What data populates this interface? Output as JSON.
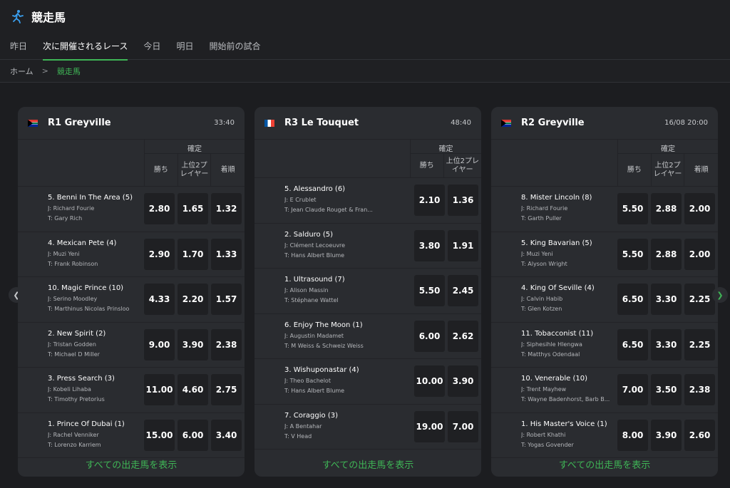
{
  "header": {
    "title": "競走馬",
    "icon": "horse-racing-icon"
  },
  "tabs": [
    "昨日",
    "次に開催されるレース",
    "今日",
    "明日",
    "開始前の試合"
  ],
  "active_tab": 1,
  "breadcrumb": {
    "home": "ホーム",
    "separator": ">",
    "current": "競走馬"
  },
  "colors": {
    "accent": "#3fb556",
    "background": "#1c1d20",
    "card": "#2a2c30",
    "odds_box": "#1f2023"
  },
  "cards": [
    {
      "flag": "south-africa-flag-icon",
      "name": "R1 Greyville",
      "time": "33:40",
      "confirm_label": "確定",
      "columns": [
        "勝ち",
        "上位2プレイヤー",
        "着順"
      ],
      "runners": [
        {
          "name": "5. Benni In The Area (5)",
          "jockey": "J: Richard Fourie",
          "trainer": "T: Gary Rich",
          "odds": [
            "2.80",
            "1.65",
            "1.32"
          ]
        },
        {
          "name": "4. Mexican Pete (4)",
          "jockey": "J: Muzi Yeni",
          "trainer": "T: Frank Robinson",
          "odds": [
            "2.90",
            "1.70",
            "1.33"
          ]
        },
        {
          "name": "10. Magic Prince (10)",
          "jockey": "J: Serino Moodley",
          "trainer": "T: Marthinus Nicolas Prinsloo",
          "odds": [
            "4.33",
            "2.20",
            "1.57"
          ]
        },
        {
          "name": "2. New Spirit (2)",
          "jockey": "J: Tristan Godden",
          "trainer": "T: Michael D Miller",
          "odds": [
            "9.00",
            "3.90",
            "2.38"
          ]
        },
        {
          "name": "3. Press Search (3)",
          "jockey": "J: Kobeli Lihaba",
          "trainer": "T: Timothy Pretorius",
          "odds": [
            "11.00",
            "4.60",
            "2.75"
          ]
        },
        {
          "name": "1. Prince Of Dubai (1)",
          "jockey": "J: Rachel Venniker",
          "trainer": "T: Lorenzo Karriem",
          "odds": [
            "15.00",
            "6.00",
            "3.40"
          ]
        }
      ],
      "show_all": "すべての出走馬を表示"
    },
    {
      "flag": "france-flag-icon",
      "name": "R3 Le Touquet",
      "time": "48:40",
      "confirm_label": "確定",
      "columns": [
        "勝ち",
        "上位2プレイヤー"
      ],
      "runners": [
        {
          "name": "5. Alessandro (6)",
          "jockey": "J: E Crublet",
          "trainer": "T: Jean Claude Rouget & Fran...",
          "odds": [
            "2.10",
            "1.36"
          ]
        },
        {
          "name": "2. Salduro (5)",
          "jockey": "J: Clément Lecoeuvre",
          "trainer": "T: Hans Albert Blume",
          "odds": [
            "3.80",
            "1.91"
          ]
        },
        {
          "name": "1. Ultrasound (7)",
          "jockey": "J: Alison Massin",
          "trainer": "T: Stéphane Wattel",
          "odds": [
            "5.50",
            "2.45"
          ]
        },
        {
          "name": "6. Enjoy The Moon (1)",
          "jockey": "J: Augustin Madamet",
          "trainer": "T: M Weiss & Schweiz Weiss",
          "odds": [
            "6.00",
            "2.62"
          ]
        },
        {
          "name": "3. Wishuponastar (4)",
          "jockey": "J: Theo Bachelot",
          "trainer": "T: Hans Albert Blume",
          "odds": [
            "10.00",
            "3.90"
          ]
        },
        {
          "name": "7. Coraggio (3)",
          "jockey": "J: A Bentahar",
          "trainer": "T: V Head",
          "odds": [
            "19.00",
            "7.00"
          ]
        }
      ],
      "show_all": "すべての出走馬を表示"
    },
    {
      "flag": "south-africa-flag-icon",
      "name": "R2 Greyville",
      "time": "16/08 20:00",
      "confirm_label": "確定",
      "columns": [
        "勝ち",
        "上位2プレイヤー",
        "着順"
      ],
      "runners": [
        {
          "name": "8. Mister Lincoln (8)",
          "jockey": "J: Richard Fourie",
          "trainer": "T: Garth Puller",
          "odds": [
            "5.50",
            "2.88",
            "2.00"
          ]
        },
        {
          "name": "5. King Bavarian (5)",
          "jockey": "J: Muzi Yeni",
          "trainer": "T: Alyson Wright",
          "odds": [
            "5.50",
            "2.88",
            "2.00"
          ]
        },
        {
          "name": "4. King Of Seville (4)",
          "jockey": "J: Calvin Habib",
          "trainer": "T: Glen Kotzen",
          "odds": [
            "6.50",
            "3.30",
            "2.25"
          ]
        },
        {
          "name": "11. Tobacconist (11)",
          "jockey": "J: Siphesihle Hlengwa",
          "trainer": "T: Matthys Odendaal",
          "odds": [
            "6.50",
            "3.30",
            "2.25"
          ]
        },
        {
          "name": "10. Venerable (10)",
          "jockey": "J: Trent Mayhew",
          "trainer": "T: Wayne Badenhorst, Barb B...",
          "odds": [
            "7.00",
            "3.50",
            "2.38"
          ]
        },
        {
          "name": "1. His Master's Voice (1)",
          "jockey": "J: Robert Khathi",
          "trainer": "T: Yogas Govender",
          "odds": [
            "8.00",
            "3.90",
            "2.60"
          ]
        }
      ],
      "show_all": "すべての出走馬を表示"
    }
  ]
}
